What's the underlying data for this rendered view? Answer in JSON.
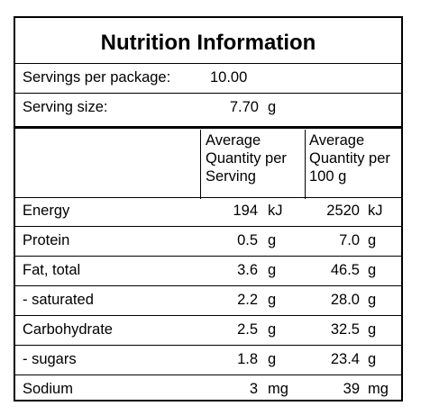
{
  "title": "Nutrition Information",
  "servings": {
    "per_package_label": "Servings per package:",
    "per_package_value": "10.00",
    "size_label": "Serving size:",
    "size_value": "7.70",
    "size_unit": "g"
  },
  "headers": {
    "per_serving": "Average\nQuantity per\nServing",
    "per_100g": "Average\nQuantity per\n100 g"
  },
  "rows": [
    {
      "name": "Energy",
      "serving": "194",
      "serving_unit": "kJ",
      "per100": "2520",
      "per100_unit": "kJ"
    },
    {
      "name": "Protein",
      "serving": "0.5",
      "serving_unit": "g",
      "per100": "7.0",
      "per100_unit": "g"
    },
    {
      "name": "Fat, total",
      "serving": "3.6",
      "serving_unit": "g",
      "per100": "46.5",
      "per100_unit": "g"
    },
    {
      "name": "- saturated",
      "serving": "2.2",
      "serving_unit": "g",
      "per100": "28.0",
      "per100_unit": "g"
    },
    {
      "name": "Carbohydrate",
      "serving": "2.5",
      "serving_unit": "g",
      "per100": "32.5",
      "per100_unit": "g"
    },
    {
      "name": "- sugars",
      "serving": "1.8",
      "serving_unit": "g",
      "per100": "23.4",
      "per100_unit": "g"
    },
    {
      "name": "Sodium",
      "serving": "3",
      "serving_unit": "mg",
      "per100": "39",
      "per100_unit": "mg"
    }
  ]
}
